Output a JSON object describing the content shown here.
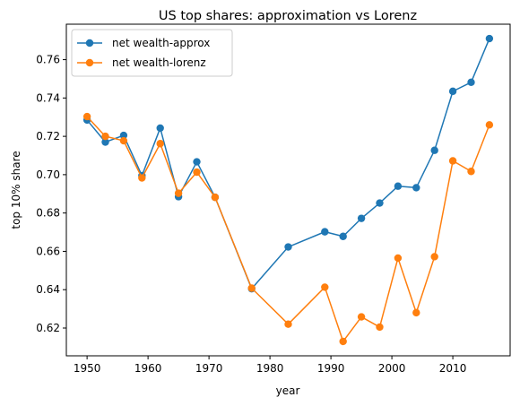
{
  "chart_data": {
    "type": "line",
    "title": "US top shares: approximation vs Lorenz",
    "xlabel": "year",
    "ylabel": "top 10% share",
    "xlim": [
      1946.6,
      2019.4
    ],
    "ylim": [
      0.6055,
      0.7785
    ],
    "xticks": [
      1950,
      1960,
      1970,
      1980,
      1990,
      2000,
      2010
    ],
    "xtick_labels": [
      "1950",
      "1960",
      "1970",
      "1980",
      "1990",
      "2000",
      "2010"
    ],
    "yticks": [
      0.62,
      0.64,
      0.66,
      0.68,
      0.7,
      0.72,
      0.74,
      0.76
    ],
    "ytick_labels": [
      "0.62",
      "0.64",
      "0.66",
      "0.68",
      "0.70",
      "0.72",
      "0.74",
      "0.76"
    ],
    "legend_position": "top-left",
    "grid": false,
    "x": [
      1950,
      1953,
      1956,
      1959,
      1962,
      1965,
      1968,
      1971,
      1977,
      1983,
      1989,
      1992,
      1995,
      1998,
      2001,
      2004,
      2007,
      2010,
      2013,
      2016
    ],
    "series": [
      {
        "name": "net wealth-approx",
        "color": "#1f77b4",
        "values": [
          0.7285,
          0.717,
          0.7205,
          0.6995,
          0.7243,
          0.6885,
          0.7067,
          0.6882,
          0.6405,
          0.6623,
          0.6702,
          0.6678,
          0.6772,
          0.6852,
          0.694,
          0.6932,
          0.7127,
          0.7435,
          0.7482,
          0.771
        ]
      },
      {
        "name": "net wealth-lorenz",
        "color": "#ff7f0e",
        "values": [
          0.7303,
          0.72,
          0.7177,
          0.6983,
          0.7162,
          0.6903,
          0.7013,
          0.6882,
          0.6408,
          0.622,
          0.6413,
          0.613,
          0.6258,
          0.6205,
          0.6565,
          0.628,
          0.6572,
          0.7072,
          0.7017,
          0.726
        ]
      }
    ]
  }
}
